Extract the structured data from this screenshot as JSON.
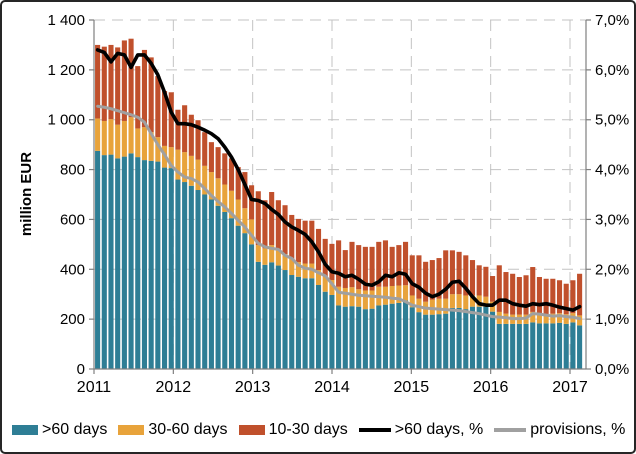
{
  "chart_data": {
    "type": "bar",
    "subtype": "stacked-bars-with-overlay-lines",
    "title": "",
    "xlabel": "",
    "ylabel": "million EUR",
    "grid": "dashed",
    "legend_position": "bottom",
    "x": [
      "2011-01",
      "2011-02",
      "2011-03",
      "2011-04",
      "2011-05",
      "2011-06",
      "2011-07",
      "2011-08",
      "2011-09",
      "2011-10",
      "2011-11",
      "2011-12",
      "2012-01",
      "2012-02",
      "2012-03",
      "2012-04",
      "2012-05",
      "2012-06",
      "2012-07",
      "2012-08",
      "2012-09",
      "2012-10",
      "2012-11",
      "2012-12",
      "2013-01",
      "2013-02",
      "2013-03",
      "2013-04",
      "2013-05",
      "2013-06",
      "2013-07",
      "2013-08",
      "2013-09",
      "2013-10",
      "2013-11",
      "2013-12",
      "2014-01",
      "2014-02",
      "2014-03",
      "2014-04",
      "2014-05",
      "2014-06",
      "2014-07",
      "2014-08",
      "2014-09",
      "2014-10",
      "2014-11",
      "2014-12",
      "2015-01",
      "2015-02",
      "2015-03",
      "2015-04",
      "2015-05",
      "2015-06",
      "2015-07",
      "2015-08",
      "2015-09",
      "2015-10",
      "2015-11",
      "2015-12",
      "2016-01",
      "2016-02",
      "2016-03",
      "2016-04",
      "2016-05",
      "2016-06",
      "2016-07",
      "2016-08",
      "2016-09",
      "2016-10",
      "2016-11",
      "2016-12",
      "2017-01"
    ],
    "series": [
      {
        "name": ">60 days",
        "type": "bar",
        "axis": "left",
        "color": "#2E7E95",
        "values": [
          875,
          858,
          860,
          845,
          852,
          865,
          850,
          838,
          835,
          832,
          808,
          806,
          760,
          750,
          735,
          718,
          700,
          680,
          655,
          630,
          605,
          575,
          545,
          500,
          430,
          418,
          428,
          415,
          397,
          377,
          370,
          364,
          364,
          337,
          310,
          297,
          255,
          250,
          252,
          250,
          240,
          242,
          255,
          258,
          262,
          265,
          275,
          248,
          228,
          218,
          218,
          220,
          222,
          245,
          245,
          240,
          250,
          250,
          250,
          230,
          181,
          181,
          181,
          181,
          181,
          187,
          183,
          183,
          183,
          185,
          181,
          187,
          175
        ]
      },
      {
        "name": "30-60 days",
        "type": "bar",
        "axis": "left",
        "color": "#E8A33B",
        "values": [
          130,
          137,
          142,
          135,
          143,
          145,
          115,
          132,
          115,
          98,
          87,
          84,
          120,
          120,
          120,
          122,
          115,
          110,
          110,
          110,
          110,
          105,
          100,
          100,
          67,
          66,
          69,
          62,
          64,
          64,
          59,
          59,
          59,
          60,
          60,
          60,
          75,
          75,
          76,
          70,
          75,
          73,
          75,
          72,
          71,
          70,
          61,
          47,
          54,
          52,
          60,
          62,
          60,
          55,
          55,
          55,
          45,
          45,
          40,
          40,
          48,
          41,
          37,
          37,
          37,
          42,
          39,
          37,
          39,
          39,
          39,
          37,
          40
        ]
      },
      {
        "name": "10-30 days",
        "type": "bar",
        "axis": "left",
        "color": "#C0502C",
        "values": [
          295,
          298,
          298,
          310,
          323,
          315,
          250,
          310,
          300,
          245,
          220,
          220,
          160,
          188,
          165,
          158,
          135,
          120,
          125,
          125,
          130,
          130,
          145,
          137,
          216,
          193,
          213,
          200,
          196,
          177,
          173,
          172,
          172,
          165,
          152,
          145,
          186,
          152,
          182,
          177,
          175,
          175,
          180,
          186,
          157,
          162,
          174,
          161,
          174,
          160,
          159,
          163,
          194,
          176,
          170,
          161,
          142,
          121,
          120,
          103,
          187,
          167,
          164,
          151,
          158,
          180,
          147,
          142,
          140,
          132,
          122,
          132,
          167
        ]
      },
      {
        "name": ">60 days, %",
        "type": "line",
        "axis": "right",
        "color": "#000000",
        "values": [
          6.4,
          6.35,
          6.16,
          6.33,
          6.3,
          6.05,
          6.3,
          6.3,
          6.13,
          5.9,
          5.55,
          5.15,
          4.92,
          4.92,
          4.9,
          4.85,
          4.79,
          4.72,
          4.62,
          4.45,
          4.25,
          4.0,
          3.7,
          3.4,
          3.38,
          3.32,
          3.2,
          3.1,
          2.95,
          2.85,
          2.78,
          2.7,
          2.55,
          2.35,
          2.1,
          1.95,
          1.92,
          1.85,
          1.88,
          1.8,
          1.7,
          1.68,
          1.75,
          1.88,
          1.85,
          1.93,
          1.9,
          1.71,
          1.64,
          1.52,
          1.45,
          1.5,
          1.6,
          1.74,
          1.76,
          1.62,
          1.45,
          1.31,
          1.28,
          1.28,
          1.38,
          1.38,
          1.31,
          1.28,
          1.26,
          1.31,
          1.29,
          1.31,
          1.28,
          1.24,
          1.21,
          1.18,
          1.25
        ]
      },
      {
        "name": "provisions, %",
        "type": "line",
        "axis": "right",
        "color": "#A0A0A0",
        "values": [
          5.27,
          5.25,
          5.22,
          5.18,
          5.14,
          5.1,
          5.05,
          4.95,
          4.72,
          4.5,
          4.3,
          4.08,
          3.95,
          3.85,
          3.82,
          3.75,
          3.62,
          3.48,
          3.36,
          3.25,
          3.12,
          2.98,
          2.85,
          2.68,
          2.52,
          2.45,
          2.42,
          2.4,
          2.28,
          2.22,
          2.08,
          2.02,
          2.0,
          1.93,
          1.87,
          1.71,
          1.54,
          1.52,
          1.5,
          1.48,
          1.47,
          1.46,
          1.45,
          1.44,
          1.42,
          1.41,
          1.35,
          1.28,
          1.25,
          1.22,
          1.21,
          1.2,
          1.19,
          1.18,
          1.17,
          1.15,
          1.13,
          1.11,
          1.08,
          1.05,
          1.04,
          1.03,
          1.01,
          1.01,
          1.02,
          1.11,
          1.1,
          1.08,
          1.06,
          1.07,
          1.05,
          1.04,
          1.01
        ]
      }
    ],
    "left_axis": {
      "min": 0,
      "max": 1400,
      "step": 200,
      "tick_labels": [
        "0",
        "200",
        "400",
        "600",
        "800",
        "1 000",
        "1 200",
        "1 400"
      ]
    },
    "right_axis": {
      "min": 0,
      "max": 7,
      "step": 1,
      "tick_labels": [
        "0,0%",
        "1,0%",
        "2,0%",
        "3,0%",
        "4,0%",
        "5,0%",
        "6,0%",
        "7,0%"
      ]
    },
    "x_axis": {
      "tick_labels": [
        "2011",
        "2012",
        "2013",
        "2014",
        "2015",
        "2016",
        "2017"
      ]
    }
  },
  "legend": {
    "items": [
      {
        "label": ">60 days",
        "swatch": "box",
        "color": "#2E7E95"
      },
      {
        "label": "30-60 days",
        "swatch": "box",
        "color": "#E8A33B"
      },
      {
        "label": "10-30 days",
        "swatch": "box",
        "color": "#C0502C"
      },
      {
        "label": ">60 days, %",
        "swatch": "line",
        "color": "#000000"
      },
      {
        "label": "provisions, %",
        "swatch": "line",
        "color": "#A0A0A0"
      }
    ]
  },
  "colors": {
    "grid": "#C3C3C3",
    "axis": "#808080",
    "text": "#000000",
    "background": "#FFFFFF"
  }
}
